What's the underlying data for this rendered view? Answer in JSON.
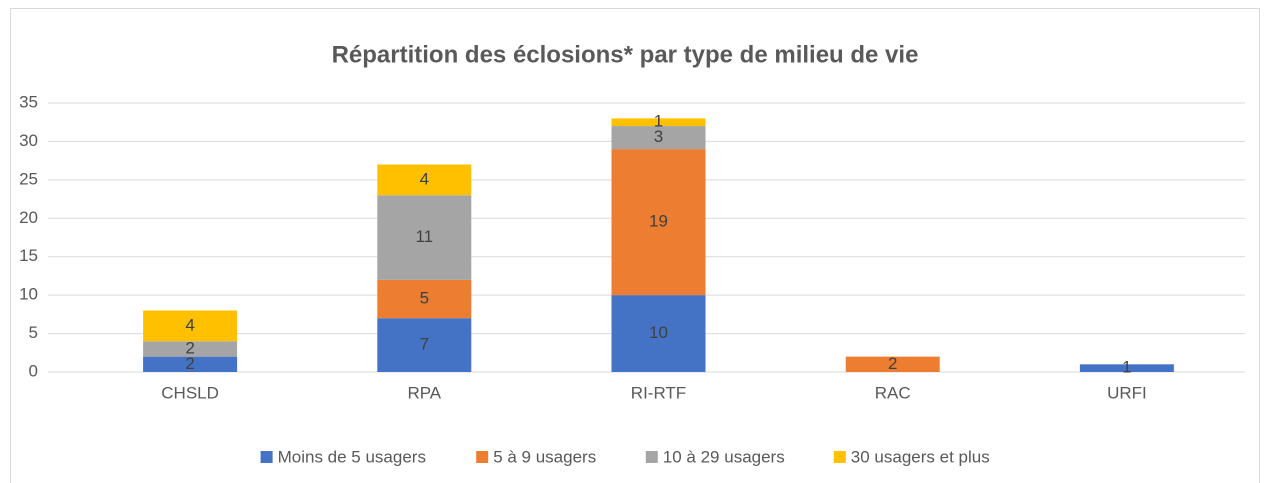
{
  "chart_data": {
    "type": "stacked_bar",
    "title": "Répartition des éclosions* par type de milieu de vie",
    "categories": [
      "CHSLD",
      "RPA",
      "RI-RTF",
      "RAC",
      "URFI"
    ],
    "series": [
      {
        "name": "Moins de 5 usagers",
        "color": "#4472c4",
        "values": [
          2,
          7,
          10,
          0,
          1
        ]
      },
      {
        "name": "5 à 9 usagers",
        "color": "#ed7d31",
        "values": [
          0,
          5,
          19,
          2,
          0
        ]
      },
      {
        "name": "10 à 29 usagers",
        "color": "#a5a5a5",
        "values": [
          2,
          11,
          3,
          0,
          0
        ]
      },
      {
        "name": "30 usagers et plus",
        "color": "#ffc000",
        "values": [
          4,
          4,
          1,
          0,
          0
        ]
      }
    ],
    "ylim": [
      0,
      35
    ],
    "yticks": [
      0,
      5,
      10,
      15,
      20,
      25,
      30,
      35
    ],
    "grid": true,
    "legend": "bottom"
  }
}
